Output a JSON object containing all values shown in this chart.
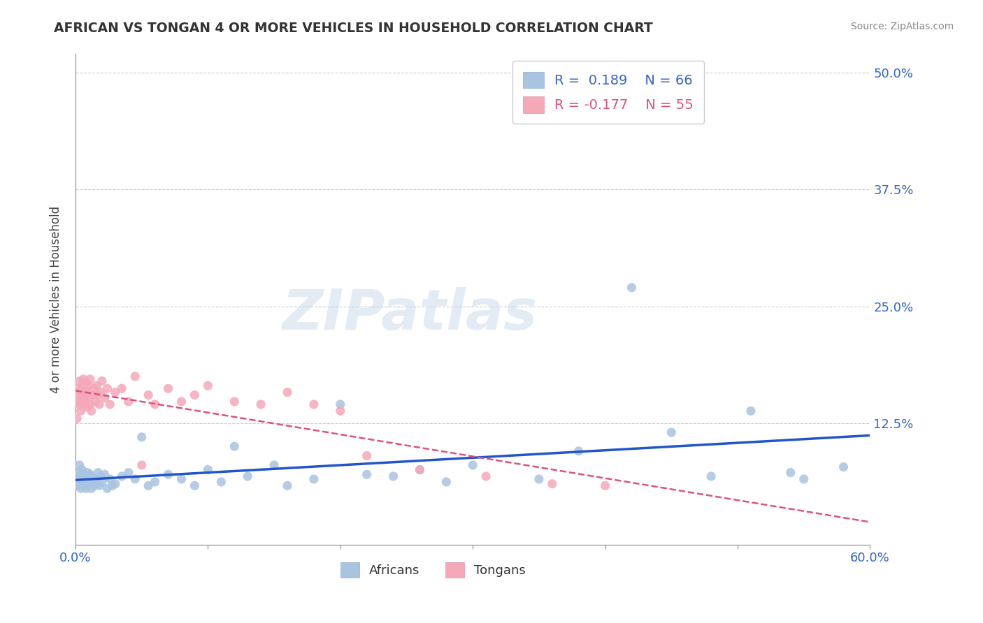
{
  "title": "AFRICAN VS TONGAN 4 OR MORE VEHICLES IN HOUSEHOLD CORRELATION CHART",
  "source": "Source: ZipAtlas.com",
  "ylabel": "4 or more Vehicles in Household",
  "xlim": [
    0.0,
    0.6
  ],
  "ylim": [
    -0.005,
    0.52
  ],
  "xticks": [
    0.0,
    0.1,
    0.2,
    0.3,
    0.4,
    0.5,
    0.6
  ],
  "xticklabels": [
    "0.0%",
    "",
    "",
    "",
    "",
    "",
    "60.0%"
  ],
  "ytick_positions": [
    0.0,
    0.125,
    0.25,
    0.375,
    0.5
  ],
  "ytick_labels": [
    "",
    "12.5%",
    "25.0%",
    "37.5%",
    "50.0%"
  ],
  "grid_color": "#cccccc",
  "background_color": "#ffffff",
  "africans_color": "#a8c4e0",
  "tongans_color": "#f4a8b8",
  "africans_line_color": "#2255cc",
  "tongans_line_color": "#e05080",
  "legend_R_african": "R =  0.189",
  "legend_N_african": "N = 66",
  "legend_R_tongan": "R = -0.177",
  "legend_N_tongan": "N = 55",
  "watermark": "ZIPatlas",
  "african_x": [
    0.001,
    0.002,
    0.003,
    0.003,
    0.004,
    0.004,
    0.005,
    0.005,
    0.006,
    0.006,
    0.007,
    0.007,
    0.008,
    0.008,
    0.009,
    0.009,
    0.01,
    0.01,
    0.011,
    0.011,
    0.012,
    0.012,
    0.013,
    0.014,
    0.015,
    0.016,
    0.017,
    0.018,
    0.019,
    0.02,
    0.022,
    0.024,
    0.026,
    0.028,
    0.03,
    0.035,
    0.04,
    0.045,
    0.05,
    0.055,
    0.06,
    0.07,
    0.08,
    0.09,
    0.1,
    0.11,
    0.12,
    0.13,
    0.15,
    0.16,
    0.18,
    0.2,
    0.22,
    0.24,
    0.26,
    0.28,
    0.3,
    0.35,
    0.38,
    0.42,
    0.45,
    0.48,
    0.51,
    0.54,
    0.55,
    0.58
  ],
  "african_y": [
    0.065,
    0.058,
    0.072,
    0.08,
    0.055,
    0.068,
    0.062,
    0.075,
    0.058,
    0.07,
    0.065,
    0.06,
    0.055,
    0.068,
    0.062,
    0.072,
    0.058,
    0.065,
    0.06,
    0.07,
    0.055,
    0.068,
    0.062,
    0.058,
    0.065,
    0.06,
    0.072,
    0.058,
    0.068,
    0.062,
    0.07,
    0.055,
    0.065,
    0.058,
    0.06,
    0.068,
    0.072,
    0.065,
    0.11,
    0.058,
    0.062,
    0.07,
    0.065,
    0.058,
    0.075,
    0.062,
    0.1,
    0.068,
    0.08,
    0.058,
    0.065,
    0.145,
    0.07,
    0.068,
    0.075,
    0.062,
    0.08,
    0.065,
    0.095,
    0.27,
    0.115,
    0.068,
    0.138,
    0.072,
    0.065,
    0.078
  ],
  "tongan_x": [
    0.001,
    0.001,
    0.002,
    0.002,
    0.003,
    0.003,
    0.004,
    0.004,
    0.005,
    0.005,
    0.006,
    0.006,
    0.007,
    0.007,
    0.008,
    0.008,
    0.009,
    0.009,
    0.01,
    0.01,
    0.011,
    0.011,
    0.012,
    0.013,
    0.014,
    0.015,
    0.016,
    0.017,
    0.018,
    0.019,
    0.02,
    0.022,
    0.024,
    0.026,
    0.03,
    0.035,
    0.04,
    0.045,
    0.05,
    0.055,
    0.06,
    0.07,
    0.08,
    0.09,
    0.1,
    0.12,
    0.14,
    0.16,
    0.18,
    0.2,
    0.22,
    0.26,
    0.31,
    0.36,
    0.4
  ],
  "tongan_y": [
    0.13,
    0.148,
    0.155,
    0.162,
    0.145,
    0.17,
    0.158,
    0.138,
    0.165,
    0.152,
    0.145,
    0.172,
    0.16,
    0.148,
    0.155,
    0.168,
    0.142,
    0.158,
    0.152,
    0.165,
    0.145,
    0.172,
    0.138,
    0.155,
    0.162,
    0.148,
    0.165,
    0.155,
    0.145,
    0.158,
    0.17,
    0.152,
    0.162,
    0.145,
    0.158,
    0.162,
    0.148,
    0.175,
    0.08,
    0.155,
    0.145,
    0.162,
    0.148,
    0.155,
    0.165,
    0.148,
    0.145,
    0.158,
    0.145,
    0.138,
    0.09,
    0.075,
    0.068,
    0.06,
    0.058
  ]
}
